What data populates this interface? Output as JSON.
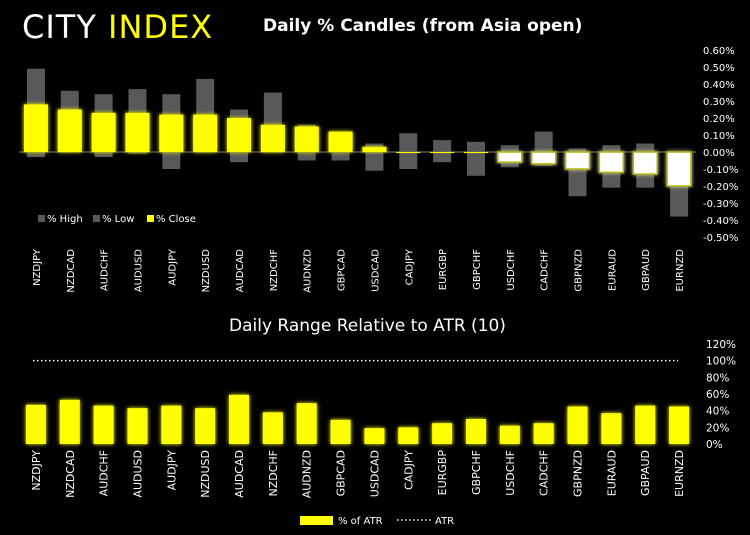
{
  "brand": {
    "logo_part1": "CITY",
    "logo_part2": "INDEX",
    "accent_color": "#ffff00"
  },
  "chart_data": [
    {
      "type": "bar",
      "title": "Daily % Candles (from Asia open)",
      "categories": [
        "NZDJPY",
        "NZDCAD",
        "AUDCHF",
        "AUDUSD",
        "AUDJPY",
        "NZDUSD",
        "AUDCAD",
        "NZDCHF",
        "AUDNZD",
        "GBPCAD",
        "USDCAD",
        "CADJPY",
        "EURGBP",
        "GBPCHF",
        "USDCHF",
        "CADCHF",
        "GBPNZD",
        "EURAUD",
        "GBPAUD",
        "EURNZD"
      ],
      "series": [
        {
          "name": "% High",
          "values": [
            0.49,
            0.36,
            0.34,
            0.37,
            0.34,
            0.43,
            0.25,
            0.35,
            0.16,
            0.12,
            0.05,
            0.11,
            0.07,
            0.06,
            0.04,
            0.12,
            0.02,
            0.04,
            0.05,
            0.0
          ]
        },
        {
          "name": "% Low",
          "values": [
            -0.03,
            0.0,
            -0.03,
            -0.01,
            -0.1,
            0.0,
            -0.06,
            0.0,
            -0.05,
            -0.05,
            -0.11,
            -0.1,
            -0.06,
            -0.14,
            -0.09,
            -0.08,
            -0.26,
            -0.21,
            -0.21,
            -0.38
          ]
        },
        {
          "name": "% Close",
          "values": [
            0.28,
            0.25,
            0.23,
            0.23,
            0.22,
            0.22,
            0.2,
            0.16,
            0.15,
            0.12,
            0.03,
            0.0,
            0.0,
            0.0,
            -0.06,
            -0.07,
            -0.1,
            -0.12,
            -0.13,
            -0.2
          ]
        }
      ],
      "y_ticks": [
        "0.60%",
        "0.50%",
        "0.40%",
        "0.30%",
        "0.20%",
        "0.10%",
        "0.00%",
        "-0.10%",
        "-0.20%",
        "-0.30%",
        "-0.40%",
        "-0.50%"
      ],
      "ylim": [
        -0.5,
        0.6
      ],
      "legend": {
        "position": "bottom-left",
        "items": [
          "% High",
          "% Low",
          "% Close"
        ]
      },
      "colors": {
        "range": "#595959",
        "up_body": "#ffff00",
        "down_body": "#ffffff",
        "glow": "#b3b300"
      }
    },
    {
      "type": "bar",
      "title": "Daily Range Relative to ATR (10)",
      "categories": [
        "NZDJPY",
        "NZDCAD",
        "AUDCHF",
        "AUDUSD",
        "AUDJPY",
        "NZDUSD",
        "AUDCAD",
        "NZDCHF",
        "AUDNZD",
        "GBPCAD",
        "USDCAD",
        "CADJPY",
        "EURGBP",
        "GBPCHF",
        "USDCHF",
        "CADCHF",
        "GBPNZD",
        "EURAUD",
        "GBPAUD",
        "EURNZD"
      ],
      "series": [
        {
          "name": "% of ATR",
          "values": [
            47,
            53,
            46,
            43,
            46,
            43,
            59,
            38,
            49,
            29,
            19,
            20,
            25,
            30,
            22,
            25,
            45,
            37,
            46,
            45
          ]
        },
        {
          "name": "ATR",
          "values": [
            100,
            100,
            100,
            100,
            100,
            100,
            100,
            100,
            100,
            100,
            100,
            100,
            100,
            100,
            100,
            100,
            100,
            100,
            100,
            100
          ]
        }
      ],
      "y_ticks": [
        "120%",
        "100%",
        "80%",
        "60%",
        "40%",
        "20%",
        "0%"
      ],
      "ylim": [
        0,
        120
      ],
      "legend": {
        "position": "bottom-center",
        "items": [
          "% of ATR",
          "ATR"
        ]
      },
      "colors": {
        "bar": "#ffff00",
        "atr_line": "#ffffff"
      }
    }
  ]
}
